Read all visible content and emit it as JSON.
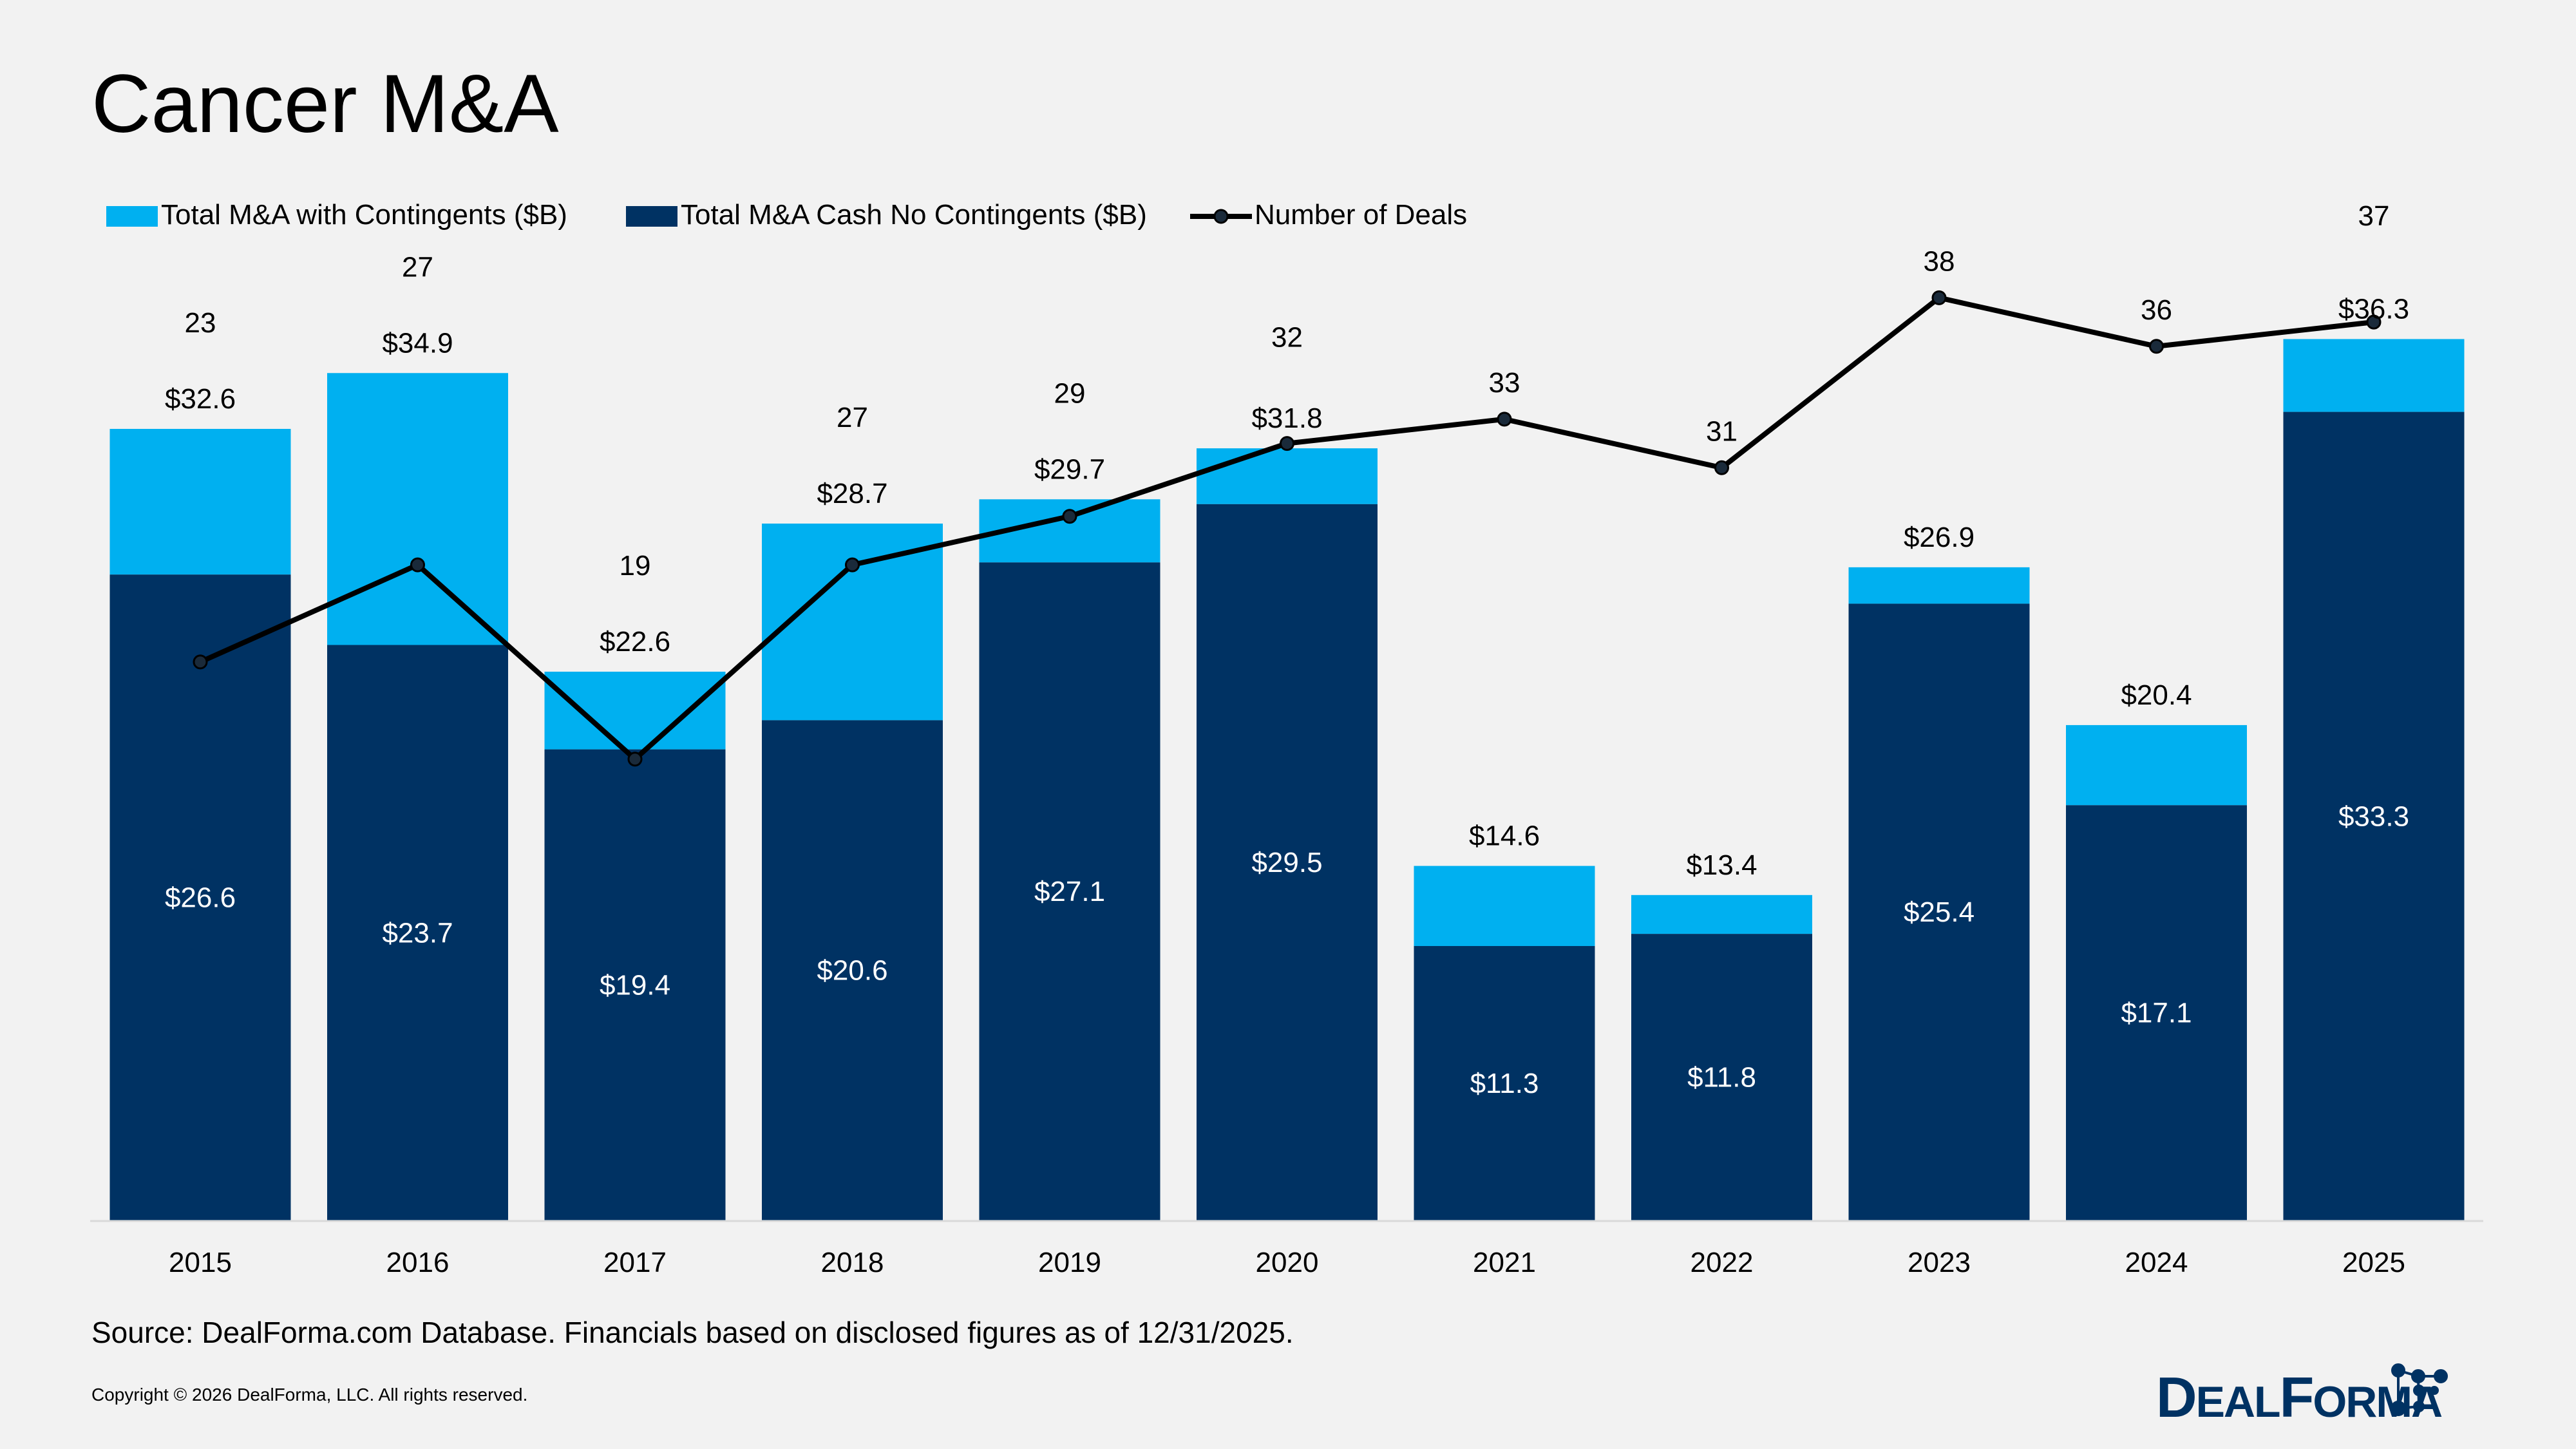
{
  "chart_data": {
    "type": "bar",
    "stacked": true,
    "title": "Cancer M&A",
    "categories": [
      "2015",
      "2016",
      "2017",
      "2018",
      "2019",
      "2020",
      "2021",
      "2022",
      "2023",
      "2024",
      "2025"
    ],
    "series": [
      {
        "name": "Total M&A with Contingents ($B)",
        "type": "bar",
        "color": "#00B0F0",
        "values": [
          32.6,
          34.9,
          22.6,
          28.7,
          29.7,
          31.8,
          14.6,
          13.4,
          26.9,
          20.4,
          36.3
        ],
        "labels": [
          "$32.6",
          "$34.9",
          "$22.6",
          "$28.7",
          "$29.7",
          "$31.8",
          "$14.6",
          "$13.4",
          "$26.9",
          "$20.4",
          "$36.3"
        ]
      },
      {
        "name": "Total M&A Cash No Contingents ($B)",
        "type": "bar",
        "color": "#003263",
        "values": [
          26.6,
          23.7,
          19.4,
          20.6,
          27.1,
          29.5,
          11.3,
          11.8,
          25.4,
          17.1,
          33.3
        ],
        "labels": [
          "$26.6",
          "$23.7",
          "$19.4",
          "$20.6",
          "$27.1",
          "$29.5",
          "$11.3",
          "$11.8",
          "$25.4",
          "$17.1",
          "$33.3"
        ]
      },
      {
        "name": "Number of Deals",
        "type": "line",
        "color": "#000000",
        "values": [
          23,
          27,
          19,
          27,
          29,
          32,
          33,
          31,
          38,
          36,
          37
        ]
      }
    ],
    "legend": "top-left",
    "grid": false,
    "xlabel": "",
    "ylabel": ""
  },
  "footer": {
    "source": "Source: DealForma.com Database. Financials based on disclosed figures as of 12/31/2025.",
    "copyright": "Copyright © 2026 DealForma, LLC. All rights reserved.",
    "logo_text": "DealForma"
  }
}
